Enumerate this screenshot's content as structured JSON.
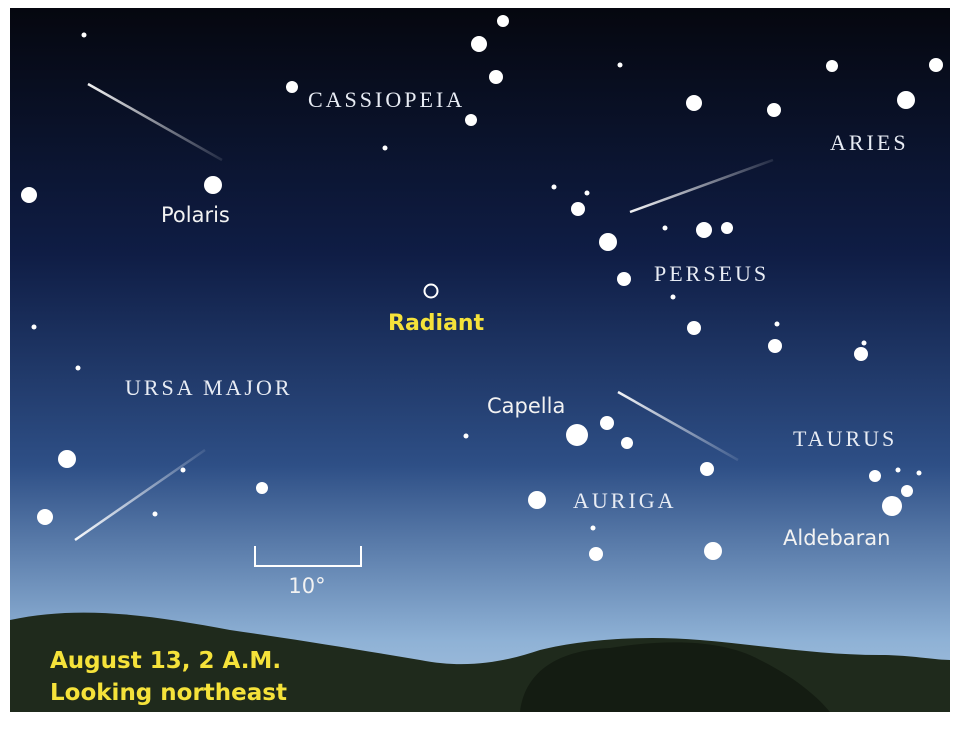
{
  "constellations": [
    "CASSIOPEIA",
    "ARIES",
    "PERSEUS",
    "URSA MAJOR",
    "TAURUS",
    "AURIGA"
  ],
  "stars": [
    "Polaris",
    "Capella",
    "Aldebaran"
  ],
  "radiant": "Radiant",
  "scale": "10°",
  "caption": [
    "August 13, 2 A.M.",
    "Looking northeast"
  ]
}
